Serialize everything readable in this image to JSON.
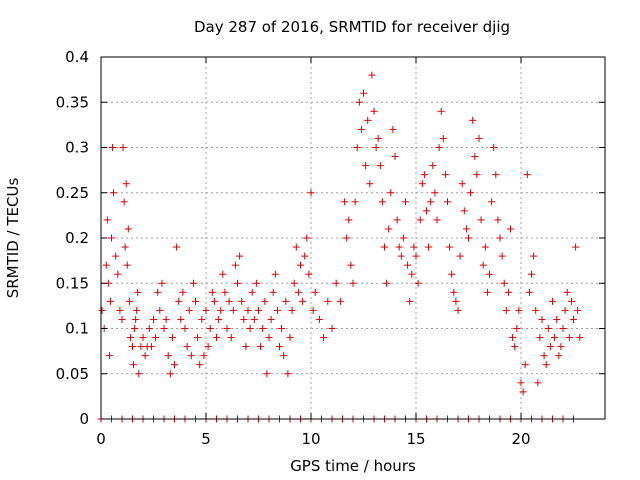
{
  "chart_data": {
    "type": "scatter",
    "title": "Day 287 of 2016, SRMTID for receiver djig",
    "xlabel": "GPS time / hours",
    "ylabel": "SRMTID / TECUs",
    "xlim": [
      0,
      24
    ],
    "ylim": [
      0,
      0.4
    ],
    "xticks": [
      0,
      5,
      10,
      15,
      20
    ],
    "xtick_labels": [
      "0",
      "5",
      "10",
      "15",
      "20"
    ],
    "yticks": [
      0,
      0.05,
      0.1,
      0.15,
      0.2,
      0.25,
      0.3,
      0.35,
      0.4
    ],
    "ytick_labels": [
      "0",
      "0.05",
      "0.1",
      "0.15",
      "0.2",
      "0.25",
      "0.3",
      "0.35",
      "0.4"
    ],
    "grid": true,
    "marker": "+",
    "series_color": "#e00000",
    "series": [
      {
        "name": "SRMTID",
        "points": [
          [
            0.05,
            0.12
          ],
          [
            0.15,
            0.1
          ],
          [
            0.25,
            0.17
          ],
          [
            0.3,
            0.22
          ],
          [
            0.35,
            0.15
          ],
          [
            0.4,
            0.07
          ],
          [
            0.45,
            0.13
          ],
          [
            0.5,
            0.2
          ],
          [
            0.55,
            0.3
          ],
          [
            0.6,
            0.25
          ],
          [
            0.7,
            0.18
          ],
          [
            0.8,
            0.16
          ],
          [
            0.9,
            0.12
          ],
          [
            1.0,
            0.11
          ],
          [
            1.05,
            0.3
          ],
          [
            1.1,
            0.24
          ],
          [
            1.15,
            0.19
          ],
          [
            1.2,
            0.26
          ],
          [
            1.25,
            0.17
          ],
          [
            1.3,
            0.21
          ],
          [
            1.35,
            0.13
          ],
          [
            1.4,
            0.09
          ],
          [
            1.5,
            0.08
          ],
          [
            1.55,
            0.06
          ],
          [
            1.6,
            0.1
          ],
          [
            1.65,
            0.11
          ],
          [
            1.7,
            0.12
          ],
          [
            1.75,
            0.14
          ],
          [
            1.8,
            0.05
          ],
          [
            1.9,
            0.08
          ],
          [
            2.0,
            0.09
          ],
          [
            2.1,
            0.07
          ],
          [
            2.2,
            0.08
          ],
          [
            2.3,
            0.1
          ],
          [
            2.4,
            0.08
          ],
          [
            2.5,
            0.11
          ],
          [
            2.6,
            0.09
          ],
          [
            2.7,
            0.14
          ],
          [
            2.8,
            0.12
          ],
          [
            2.9,
            0.15
          ],
          [
            3.0,
            0.1
          ],
          [
            3.1,
            0.11
          ],
          [
            3.2,
            0.07
          ],
          [
            3.3,
            0.05
          ],
          [
            3.4,
            0.09
          ],
          [
            3.5,
            0.06
          ],
          [
            3.6,
            0.19
          ],
          [
            3.7,
            0.13
          ],
          [
            3.8,
            0.11
          ],
          [
            3.9,
            0.14
          ],
          [
            4.0,
            0.1
          ],
          [
            4.1,
            0.08
          ],
          [
            4.2,
            0.12
          ],
          [
            4.3,
            0.07
          ],
          [
            4.4,
            0.15
          ],
          [
            4.5,
            0.13
          ],
          [
            4.6,
            0.09
          ],
          [
            4.7,
            0.06
          ],
          [
            4.8,
            0.11
          ],
          [
            4.9,
            0.07
          ],
          [
            5.0,
            0.12
          ],
          [
            5.1,
            0.08
          ],
          [
            5.2,
            0.1
          ],
          [
            5.3,
            0.14
          ],
          [
            5.4,
            0.13
          ],
          [
            5.5,
            0.09
          ],
          [
            5.6,
            0.11
          ],
          [
            5.7,
            0.12
          ],
          [
            5.8,
            0.16
          ],
          [
            5.9,
            0.14
          ],
          [
            6.0,
            0.1
          ],
          [
            6.1,
            0.13
          ],
          [
            6.2,
            0.09
          ],
          [
            6.3,
            0.12
          ],
          [
            6.4,
            0.17
          ],
          [
            6.5,
            0.15
          ],
          [
            6.6,
            0.18
          ],
          [
            6.7,
            0.13
          ],
          [
            6.8,
            0.11
          ],
          [
            6.9,
            0.08
          ],
          [
            7.0,
            0.12
          ],
          [
            7.1,
            0.1
          ],
          [
            7.2,
            0.14
          ],
          [
            7.3,
            0.11
          ],
          [
            7.4,
            0.15
          ],
          [
            7.5,
            0.12
          ],
          [
            7.6,
            0.08
          ],
          [
            7.7,
            0.1
          ],
          [
            7.8,
            0.13
          ],
          [
            7.9,
            0.05
          ],
          [
            8.0,
            0.09
          ],
          [
            8.1,
            0.11
          ],
          [
            8.2,
            0.14
          ],
          [
            8.3,
            0.16
          ],
          [
            8.4,
            0.12
          ],
          [
            8.5,
            0.08
          ],
          [
            8.6,
            0.1
          ],
          [
            8.7,
            0.07
          ],
          [
            8.8,
            0.13
          ],
          [
            8.9,
            0.05
          ],
          [
            9.0,
            0.09
          ],
          [
            9.1,
            0.12
          ],
          [
            9.2,
            0.15
          ],
          [
            9.3,
            0.19
          ],
          [
            9.4,
            0.14
          ],
          [
            9.5,
            0.17
          ],
          [
            9.6,
            0.13
          ],
          [
            9.7,
            0.18
          ],
          [
            9.8,
            0.2
          ],
          [
            9.9,
            0.16
          ],
          [
            10.0,
            0.25
          ],
          [
            10.1,
            0.12
          ],
          [
            10.2,
            0.14
          ],
          [
            10.4,
            0.11
          ],
          [
            10.6,
            0.09
          ],
          [
            10.8,
            0.13
          ],
          [
            11.0,
            0.1
          ],
          [
            11.2,
            0.15
          ],
          [
            11.4,
            0.13
          ],
          [
            11.6,
            0.24
          ],
          [
            11.7,
            0.2
          ],
          [
            11.8,
            0.22
          ],
          [
            11.9,
            0.17
          ],
          [
            12.0,
            0.15
          ],
          [
            12.1,
            0.24
          ],
          [
            12.2,
            0.3
          ],
          [
            12.3,
            0.35
          ],
          [
            12.4,
            0.32
          ],
          [
            12.5,
            0.36
          ],
          [
            12.6,
            0.28
          ],
          [
            12.7,
            0.33
          ],
          [
            12.8,
            0.26
          ],
          [
            12.9,
            0.38
          ],
          [
            13.0,
            0.34
          ],
          [
            13.1,
            0.3
          ],
          [
            13.2,
            0.31
          ],
          [
            13.3,
            0.28
          ],
          [
            13.4,
            0.24
          ],
          [
            13.5,
            0.19
          ],
          [
            13.6,
            0.15
          ],
          [
            13.7,
            0.21
          ],
          [
            13.8,
            0.25
          ],
          [
            13.9,
            0.32
          ],
          [
            14.0,
            0.29
          ],
          [
            14.1,
            0.22
          ],
          [
            14.2,
            0.19
          ],
          [
            14.3,
            0.18
          ],
          [
            14.4,
            0.2
          ],
          [
            14.5,
            0.24
          ],
          [
            14.6,
            0.17
          ],
          [
            14.7,
            0.13
          ],
          [
            14.8,
            0.16
          ],
          [
            14.9,
            0.19
          ],
          [
            15.0,
            0.18
          ],
          [
            15.1,
            0.15
          ],
          [
            15.2,
            0.22
          ],
          [
            15.3,
            0.26
          ],
          [
            15.4,
            0.27
          ],
          [
            15.5,
            0.23
          ],
          [
            15.6,
            0.19
          ],
          [
            15.7,
            0.24
          ],
          [
            15.8,
            0.28
          ],
          [
            15.9,
            0.25
          ],
          [
            16.0,
            0.22
          ],
          [
            16.1,
            0.3
          ],
          [
            16.2,
            0.34
          ],
          [
            16.3,
            0.31
          ],
          [
            16.4,
            0.27
          ],
          [
            16.5,
            0.24
          ],
          [
            16.6,
            0.19
          ],
          [
            16.7,
            0.16
          ],
          [
            16.8,
            0.14
          ],
          [
            16.9,
            0.13
          ],
          [
            17.0,
            0.12
          ],
          [
            17.1,
            0.18
          ],
          [
            17.2,
            0.26
          ],
          [
            17.3,
            0.23
          ],
          [
            17.4,
            0.21
          ],
          [
            17.5,
            0.2
          ],
          [
            17.6,
            0.25
          ],
          [
            17.7,
            0.33
          ],
          [
            17.8,
            0.29
          ],
          [
            17.9,
            0.27
          ],
          [
            18.0,
            0.31
          ],
          [
            18.1,
            0.22
          ],
          [
            18.2,
            0.17
          ],
          [
            18.3,
            0.19
          ],
          [
            18.4,
            0.14
          ],
          [
            18.5,
            0.16
          ],
          [
            18.6,
            0.24
          ],
          [
            18.7,
            0.3
          ],
          [
            18.8,
            0.27
          ],
          [
            18.9,
            0.22
          ],
          [
            19.0,
            0.2
          ],
          [
            19.1,
            0.18
          ],
          [
            19.2,
            0.15
          ],
          [
            19.3,
            0.12
          ],
          [
            19.4,
            0.14
          ],
          [
            19.5,
            0.21
          ],
          [
            19.6,
            0.09
          ],
          [
            19.7,
            0.08
          ],
          [
            19.8,
            0.1
          ],
          [
            19.9,
            0.12
          ],
          [
            20.0,
            0.04
          ],
          [
            20.1,
            0.03
          ],
          [
            20.2,
            0.06
          ],
          [
            20.3,
            0.27
          ],
          [
            20.4,
            0.14
          ],
          [
            20.5,
            0.16
          ],
          [
            20.6,
            0.18
          ],
          [
            20.7,
            0.12
          ],
          [
            20.8,
            0.04
          ],
          [
            20.9,
            0.09
          ],
          [
            21.0,
            0.11
          ],
          [
            21.1,
            0.07
          ],
          [
            21.2,
            0.06
          ],
          [
            21.3,
            0.1
          ],
          [
            21.4,
            0.08
          ],
          [
            21.5,
            0.13
          ],
          [
            21.6,
            0.09
          ],
          [
            21.7,
            0.11
          ],
          [
            21.8,
            0.07
          ],
          [
            21.9,
            0.08
          ],
          [
            22.0,
            0.1
          ],
          [
            22.1,
            0.12
          ],
          [
            22.2,
            0.14
          ],
          [
            22.3,
            0.09
          ],
          [
            22.4,
            0.13
          ],
          [
            22.5,
            0.11
          ],
          [
            22.6,
            0.19
          ],
          [
            22.7,
            0.12
          ],
          [
            22.8,
            0.09
          ],
          [
            0.0,
            0
          ],
          [
            0.5,
            0
          ],
          [
            1.0,
            0
          ],
          [
            1.5,
            0
          ],
          [
            2.0,
            0
          ],
          [
            2.5,
            0
          ],
          [
            3.0,
            0
          ],
          [
            3.5,
            0
          ],
          [
            4.0,
            0
          ],
          [
            4.5,
            0
          ],
          [
            5.0,
            0
          ],
          [
            5.5,
            0
          ],
          [
            6.0,
            0
          ],
          [
            6.5,
            0
          ],
          [
            7.0,
            0
          ],
          [
            7.5,
            0
          ],
          [
            8.0,
            0
          ],
          [
            8.5,
            0
          ],
          [
            9.0,
            0
          ],
          [
            9.5,
            0
          ],
          [
            10.0,
            0
          ],
          [
            10.5,
            0
          ],
          [
            11.0,
            0
          ],
          [
            11.5,
            0
          ],
          [
            12.0,
            0
          ],
          [
            12.5,
            0
          ],
          [
            13.0,
            0
          ],
          [
            13.5,
            0
          ],
          [
            14.0,
            0
          ],
          [
            14.5,
            0
          ],
          [
            15.0,
            0
          ],
          [
            15.5,
            0
          ],
          [
            16.0,
            0
          ],
          [
            16.5,
            0
          ],
          [
            17.0,
            0
          ],
          [
            17.5,
            0
          ],
          [
            18.0,
            0
          ],
          [
            18.5,
            0
          ],
          [
            19.0,
            0
          ],
          [
            19.5,
            0
          ],
          [
            20.0,
            0
          ],
          [
            20.5,
            0
          ],
          [
            21.0,
            0
          ],
          [
            21.5,
            0
          ],
          [
            22.0,
            0
          ],
          [
            22.5,
            0
          ]
        ]
      }
    ]
  }
}
